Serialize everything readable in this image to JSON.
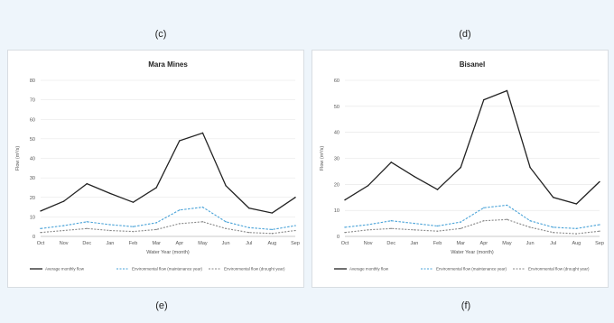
{
  "labels": {
    "c": "(c)",
    "d": "(d)",
    "e": "(e)",
    "f": "(f)"
  },
  "chart_data": [
    {
      "type": "line",
      "title": "Mara Mines",
      "xlabel": "Water Year (month)",
      "ylabel": "Flow (m³/s)",
      "categories": [
        "Oct",
        "Nov",
        "Dec",
        "Jan",
        "Feb",
        "Mar",
        "Apr",
        "May",
        "Jun",
        "Jul",
        "Aug",
        "Sep"
      ],
      "ylim": [
        0,
        80
      ],
      "yticks": [
        0,
        10,
        20,
        30,
        40,
        50,
        60,
        70,
        80
      ],
      "legend_position": "bottom",
      "grid": true,
      "series": [
        {
          "name": "Average monthly flow",
          "color": "#222222",
          "dash": "solid",
          "values": [
            13,
            18,
            27,
            22,
            17.5,
            25,
            49,
            53,
            26,
            14.5,
            12,
            20
          ]
        },
        {
          "name": "Environmental flow (maintenance year)",
          "color": "#4aa3d8",
          "dash": "dashed",
          "values": [
            4,
            5.5,
            7.5,
            6,
            5,
            7,
            13.5,
            15,
            7.5,
            4.5,
            3.5,
            5.5
          ]
        },
        {
          "name": "Environmental flow (drought year)",
          "color": "#888888",
          "dash": "dashed",
          "values": [
            2,
            3,
            4,
            3,
            2.5,
            3.5,
            6.5,
            7.5,
            4,
            2,
            1.5,
            3
          ]
        }
      ]
    },
    {
      "type": "line",
      "title": "Bisanel",
      "xlabel": "Water Year (month)",
      "ylabel": "Flow (m³/s)",
      "categories": [
        "Oct",
        "Nov",
        "Dec",
        "Jan",
        "Feb",
        "Mar",
        "Apr",
        "May",
        "Jun",
        "Jul",
        "Aug",
        "Sep"
      ],
      "ylim": [
        0,
        60
      ],
      "yticks": [
        0,
        10,
        20,
        30,
        40,
        50,
        60
      ],
      "legend_position": "bottom",
      "grid": true,
      "series": [
        {
          "name": "Average monthly flow",
          "color": "#222222",
          "dash": "solid",
          "values": [
            14,
            19.5,
            28.5,
            23,
            18,
            26.5,
            52.5,
            56,
            26.5,
            15,
            12.5,
            21
          ]
        },
        {
          "name": "Environmental flow (maintenance year)",
          "color": "#4aa3d8",
          "dash": "dashed",
          "values": [
            3.5,
            4.5,
            6,
            5,
            4,
            5.5,
            11,
            12,
            6,
            3.5,
            3,
            4.5
          ]
        },
        {
          "name": "Environmental flow (drought year)",
          "color": "#888888",
          "dash": "dashed",
          "values": [
            1.5,
            2.5,
            3,
            2.5,
            2,
            3,
            6,
            6.5,
            3.5,
            1.5,
            1,
            2
          ]
        }
      ]
    }
  ]
}
